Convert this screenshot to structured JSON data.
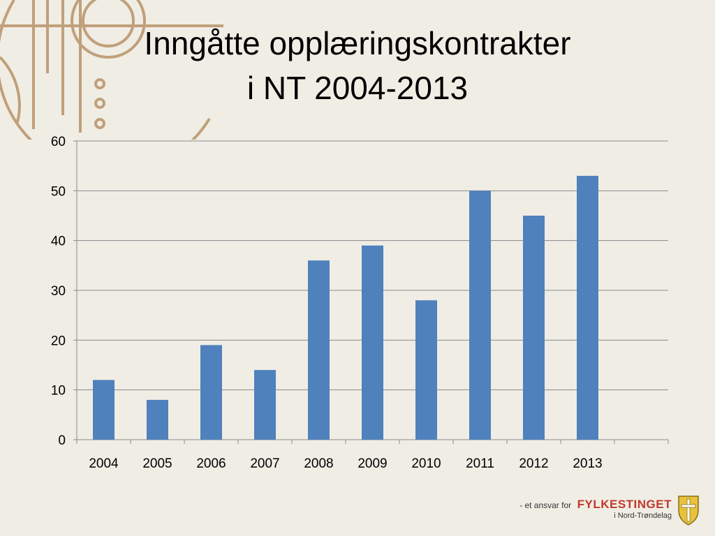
{
  "slide": {
    "title_line1": "Inngåtte opplæringskontrakter",
    "title_line2": "i NT 2004-2013"
  },
  "footer": {
    "tagline": "- et ansvar for",
    "brand": "FYLKESTINGET",
    "region": "i Nord-Trøndelag",
    "logo_icon": "coat-of-arms-icon"
  },
  "colors": {
    "background": "#f0ede5",
    "bar": "#4f81bd",
    "decor": "#c0a07a",
    "brand": "#c0392b"
  },
  "chart_data": {
    "type": "bar",
    "categories": [
      "2004",
      "2005",
      "2006",
      "2007",
      "2008",
      "2009",
      "2010",
      "2011",
      "2012",
      "2013"
    ],
    "values": [
      12,
      8,
      19,
      14,
      36,
      39,
      28,
      50,
      45,
      53
    ],
    "title": "",
    "xlabel": "",
    "ylabel": "",
    "ylim": [
      0,
      60
    ],
    "yticks": [
      0,
      10,
      20,
      30,
      40,
      50,
      60
    ],
    "grid": true,
    "legend": "none"
  }
}
